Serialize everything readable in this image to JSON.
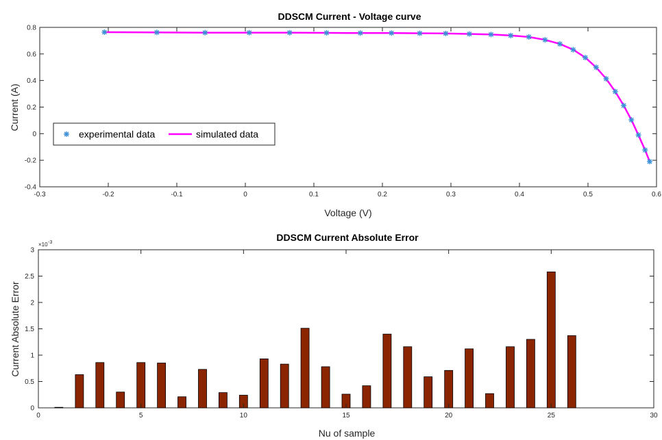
{
  "chart_data": [
    {
      "type": "line",
      "title": "DDSCM Current - Voltage curve",
      "xlabel": "Voltage (V)",
      "ylabel": "Current  (A)",
      "xlim": [
        -0.3,
        0.6
      ],
      "ylim": [
        -0.4,
        0.8
      ],
      "xticks": [
        "-0.3",
        "-0.2",
        "-0.1",
        "0",
        "0.1",
        "0.2",
        "0.3",
        "0.4",
        "0.5",
        "0.6"
      ],
      "yticks": [
        "-0.4",
        "-0.2",
        "0",
        "0.2",
        "0.4",
        "0.6",
        "0.8"
      ],
      "grid": false,
      "legend_position": "middle-left",
      "colors": {
        "experimental": "#3a8fd6",
        "simulated": "#ff00ff"
      },
      "series": [
        {
          "name": "experimental data",
          "marker": "asterisk",
          "x": [
            -0.2057,
            -0.1291,
            -0.0588,
            0.0057,
            0.0646,
            0.1185,
            0.1678,
            0.2132,
            0.2545,
            0.2924,
            0.3269,
            0.3585,
            0.3873,
            0.4137,
            0.4373,
            0.459,
            0.4784,
            0.496,
            0.5119,
            0.5265,
            0.5398,
            0.5521,
            0.5633,
            0.5736,
            0.5833,
            0.59
          ],
          "y": [
            0.764,
            0.762,
            0.7605,
            0.7605,
            0.76,
            0.759,
            0.757,
            0.757,
            0.7555,
            0.754,
            0.7505,
            0.7465,
            0.7385,
            0.728,
            0.7065,
            0.6755,
            0.632,
            0.573,
            0.499,
            0.413,
            0.3165,
            0.212,
            0.1035,
            -0.01,
            -0.123,
            -0.21
          ]
        },
        {
          "name": "simulated data",
          "x": [
            -0.2057,
            -0.1291,
            -0.0588,
            0.0057,
            0.0646,
            0.1185,
            0.1678,
            0.2132,
            0.2545,
            0.2924,
            0.3269,
            0.3585,
            0.3873,
            0.4137,
            0.4373,
            0.459,
            0.4784,
            0.496,
            0.5119,
            0.5265,
            0.5398,
            0.5521,
            0.5633,
            0.5736,
            0.5833,
            0.59
          ],
          "y": [
            0.764,
            0.762,
            0.7605,
            0.7605,
            0.76,
            0.759,
            0.757,
            0.757,
            0.7555,
            0.754,
            0.7505,
            0.7465,
            0.7385,
            0.728,
            0.7065,
            0.6755,
            0.632,
            0.573,
            0.499,
            0.413,
            0.3165,
            0.212,
            0.1035,
            -0.01,
            -0.123,
            -0.21
          ]
        }
      ]
    },
    {
      "type": "bar",
      "title": "DDSCM Current Absolute Error",
      "xlabel": "Nu of sample",
      "ylabel": "Current Absolute Error",
      "y_multiplier_label": "×10",
      "y_multiplier_exponent": "-3",
      "xlim": [
        0,
        30
      ],
      "ylim": [
        0,
        3
      ],
      "xticks": [
        "0",
        "5",
        "10",
        "15",
        "20",
        "25",
        "30"
      ],
      "yticks": [
        "0",
        "0.5",
        "1",
        "1.5",
        "2",
        "2.5",
        "3"
      ],
      "grid": false,
      "colors": {
        "bar": "#8b2500"
      },
      "categories": [
        1,
        2,
        3,
        4,
        5,
        6,
        7,
        8,
        9,
        10,
        11,
        12,
        13,
        14,
        15,
        16,
        17,
        18,
        19,
        20,
        21,
        22,
        23,
        24,
        25,
        26
      ],
      "values": [
        0.01,
        0.63,
        0.86,
        0.3,
        0.86,
        0.85,
        0.21,
        0.73,
        0.29,
        0.24,
        0.93,
        0.83,
        1.51,
        0.78,
        0.26,
        0.42,
        1.4,
        1.16,
        0.59,
        0.71,
        1.12,
        0.27,
        1.16,
        1.3,
        2.58,
        1.37
      ]
    }
  ]
}
